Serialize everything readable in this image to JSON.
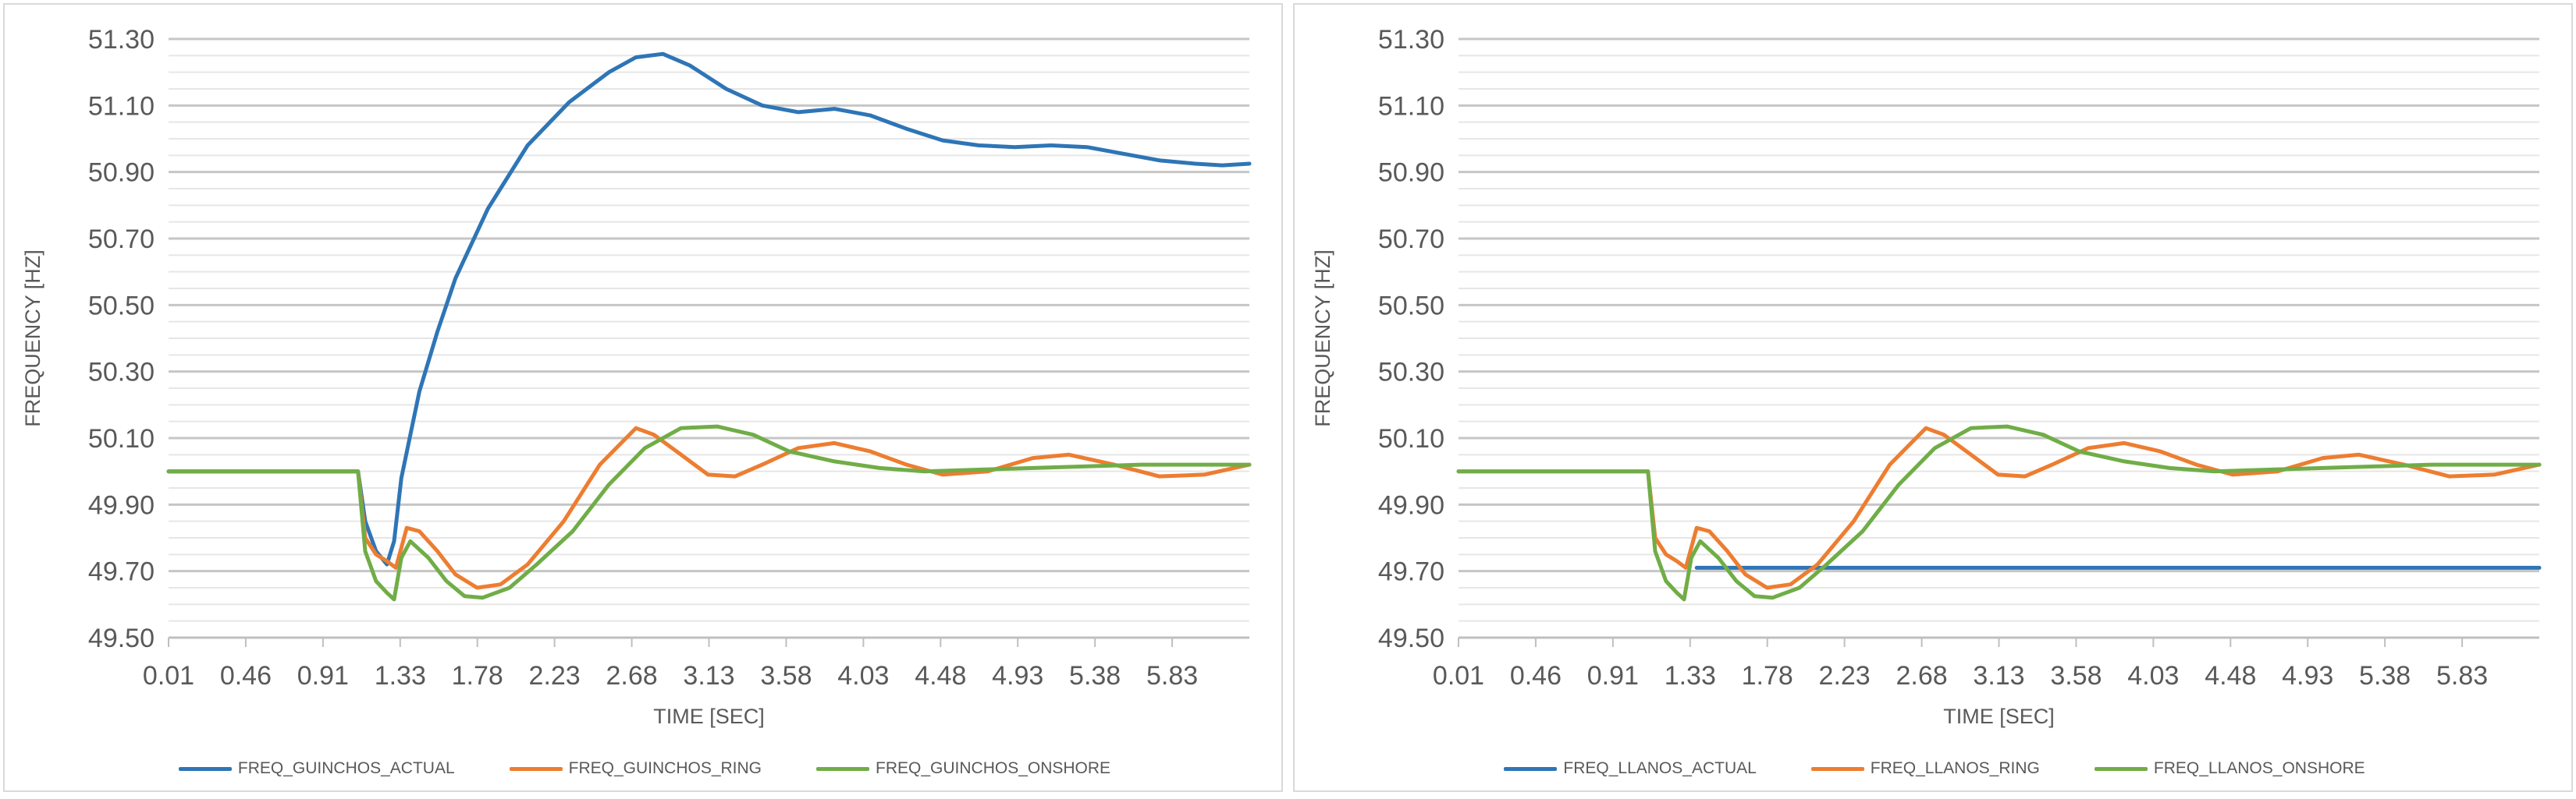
{
  "charts": [
    {
      "type": "line",
      "xlabel": "TIME [SEC]",
      "ylabel": "FREQUENCY [HZ]",
      "ylim": [
        49.5,
        51.3
      ],
      "xlim": [
        0.01,
        6.0
      ],
      "yticks": [
        "49.50",
        "49.70",
        "49.90",
        "50.10",
        "50.30",
        "50.50",
        "50.70",
        "50.90",
        "51.10",
        "51.30"
      ],
      "xticks": [
        "0.01",
        "0.46",
        "0.91",
        "1.33",
        "1.78",
        "2.23",
        "2.68",
        "3.13",
        "3.58",
        "4.03",
        "4.48",
        "4.93",
        "5.38",
        "5.83"
      ],
      "grid": true,
      "legend_position": "bottom",
      "series": [
        {
          "name": "FREQ_GUINCHOS_ACTUAL",
          "color": "#2e75b6",
          "x": [
            0.01,
            1.06,
            1.1,
            1.16,
            1.22,
            1.26,
            1.3,
            1.4,
            1.5,
            1.6,
            1.78,
            2.0,
            2.23,
            2.45,
            2.6,
            2.75,
            2.9,
            3.1,
            3.3,
            3.5,
            3.7,
            3.9,
            4.1,
            4.3,
            4.5,
            4.7,
            4.9,
            5.1,
            5.3,
            5.5,
            5.7,
            5.85,
            6.0
          ],
          "y": [
            50.0,
            50.0,
            49.85,
            49.76,
            49.72,
            49.79,
            49.98,
            50.24,
            50.42,
            50.58,
            50.79,
            50.98,
            51.11,
            51.2,
            51.245,
            51.255,
            51.22,
            51.15,
            51.1,
            51.08,
            51.09,
            51.07,
            51.03,
            50.995,
            50.98,
            50.975,
            50.98,
            50.975,
            50.955,
            50.935,
            50.925,
            50.92,
            50.925
          ]
        },
        {
          "name": "FREQ_GUINCHOS_RING",
          "color": "#ed7d31",
          "x": [
            0.01,
            1.06,
            1.1,
            1.16,
            1.22,
            1.27,
            1.33,
            1.4,
            1.5,
            1.6,
            1.72,
            1.85,
            2.0,
            2.2,
            2.4,
            2.6,
            2.7,
            2.85,
            3.0,
            3.15,
            3.3,
            3.5,
            3.7,
            3.9,
            4.1,
            4.3,
            4.55,
            4.8,
            5.0,
            5.25,
            5.5,
            5.75,
            6.0
          ],
          "y": [
            50.0,
            50.0,
            49.8,
            49.75,
            49.73,
            49.71,
            49.83,
            49.82,
            49.76,
            49.69,
            49.65,
            49.66,
            49.72,
            49.85,
            50.02,
            50.13,
            50.11,
            50.05,
            49.99,
            49.985,
            50.02,
            50.07,
            50.085,
            50.06,
            50.02,
            49.99,
            50.0,
            50.04,
            50.05,
            50.02,
            49.985,
            49.99,
            50.02
          ]
        },
        {
          "name": "FREQ_GUINCHOS_ONSHORE",
          "color": "#70ad47",
          "x": [
            0.01,
            1.06,
            1.1,
            1.16,
            1.22,
            1.26,
            1.3,
            1.35,
            1.45,
            1.55,
            1.65,
            1.75,
            1.9,
            2.05,
            2.25,
            2.45,
            2.65,
            2.85,
            3.05,
            3.25,
            3.45,
            3.7,
            3.95,
            4.2,
            4.5,
            4.8,
            5.1,
            5.4,
            5.7,
            6.0
          ],
          "y": [
            50.0,
            50.0,
            49.76,
            49.67,
            49.635,
            49.615,
            49.74,
            49.79,
            49.74,
            49.67,
            49.625,
            49.62,
            49.65,
            49.72,
            49.82,
            49.96,
            50.07,
            50.13,
            50.135,
            50.11,
            50.06,
            50.03,
            50.01,
            50.0,
            50.005,
            50.01,
            50.015,
            50.02,
            50.02,
            50.02
          ]
        }
      ]
    },
    {
      "type": "line",
      "xlabel": "TIME [SEC]",
      "ylabel": "FREQUENCY [HZ]",
      "ylim": [
        49.5,
        51.3
      ],
      "xlim": [
        0.01,
        6.0
      ],
      "yticks": [
        "49.50",
        "49.70",
        "49.90",
        "50.10",
        "50.30",
        "50.50",
        "50.70",
        "50.90",
        "51.10",
        "51.30"
      ],
      "xticks": [
        "0.01",
        "0.46",
        "0.91",
        "1.33",
        "1.78",
        "2.23",
        "2.68",
        "3.13",
        "3.58",
        "4.03",
        "4.48",
        "4.93",
        "5.38",
        "5.83"
      ],
      "grid": true,
      "legend_position": "bottom",
      "series": [
        {
          "name": "FREQ_LLANOS_ACTUAL",
          "color": "#2e75b6",
          "x": [
            1.33,
            6.0
          ],
          "y": [
            49.71,
            49.71
          ]
        },
        {
          "name": "FREQ_LLANOS_RING",
          "color": "#ed7d31",
          "x": [
            0.01,
            1.06,
            1.1,
            1.16,
            1.22,
            1.27,
            1.33,
            1.4,
            1.5,
            1.6,
            1.72,
            1.85,
            2.0,
            2.2,
            2.4,
            2.6,
            2.7,
            2.85,
            3.0,
            3.15,
            3.3,
            3.5,
            3.7,
            3.9,
            4.1,
            4.3,
            4.55,
            4.8,
            5.0,
            5.25,
            5.5,
            5.75,
            6.0
          ],
          "y": [
            50.0,
            50.0,
            49.8,
            49.75,
            49.73,
            49.71,
            49.83,
            49.82,
            49.76,
            49.69,
            49.65,
            49.66,
            49.72,
            49.85,
            50.02,
            50.13,
            50.11,
            50.05,
            49.99,
            49.985,
            50.02,
            50.07,
            50.085,
            50.06,
            50.02,
            49.99,
            50.0,
            50.04,
            50.05,
            50.02,
            49.985,
            49.99,
            50.02
          ]
        },
        {
          "name": "FREQ_LLANOS_ONSHORE",
          "color": "#70ad47",
          "x": [
            0.01,
            1.06,
            1.1,
            1.16,
            1.22,
            1.26,
            1.3,
            1.35,
            1.45,
            1.55,
            1.65,
            1.75,
            1.9,
            2.05,
            2.25,
            2.45,
            2.65,
            2.85,
            3.05,
            3.25,
            3.45,
            3.7,
            3.95,
            4.2,
            4.5,
            4.8,
            5.1,
            5.4,
            5.7,
            6.0
          ],
          "y": [
            50.0,
            50.0,
            49.76,
            49.67,
            49.635,
            49.615,
            49.74,
            49.79,
            49.74,
            49.67,
            49.625,
            49.62,
            49.65,
            49.72,
            49.82,
            49.96,
            50.07,
            50.13,
            50.135,
            50.11,
            50.06,
            50.03,
            50.01,
            50.0,
            50.005,
            50.01,
            50.015,
            50.02,
            50.02,
            50.02
          ]
        }
      ]
    }
  ]
}
